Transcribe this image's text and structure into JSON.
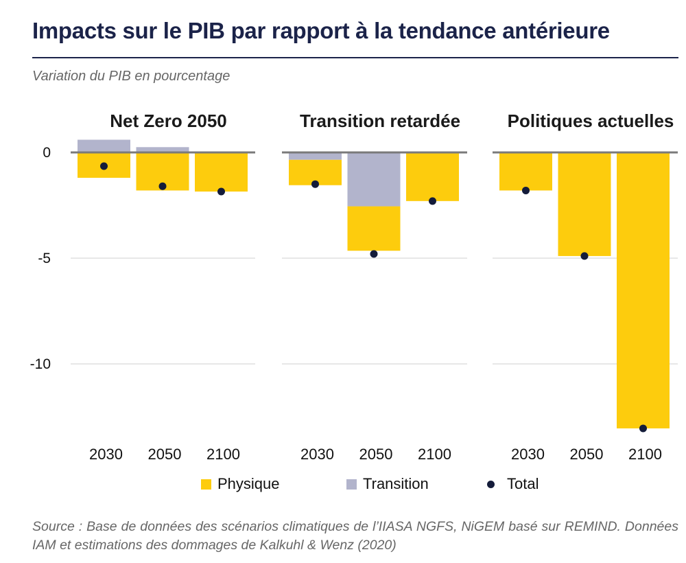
{
  "title": "Impacts sur le PIB par rapport à la tendance antérieure",
  "subtitle": "Variation du PIB en pourcentage",
  "source": "Source : Base de données des scénarios climatiques de l’IIASA NGFS, NiGEM basé sur REMIND. Données IAM et estimations des dommages de Kalkuhl & Wenz (2020)",
  "colors": {
    "physique": "#fdcc0d",
    "transition": "#b2b4cc",
    "total": "#141c3a",
    "title": "#1b2349"
  },
  "chart_data": {
    "type": "bar",
    "stacked": true,
    "ylim": [
      -13,
      0.6
    ],
    "yticks": [
      0,
      -5,
      -10
    ],
    "ytick_labels": [
      "0",
      "-5",
      "-10"
    ],
    "grid": true,
    "legend": {
      "position": "bottom",
      "entries": [
        "Physique",
        "Transition",
        "Total"
      ]
    },
    "panels": [
      {
        "title": "Net Zero 2050",
        "categories": [
          "2030",
          "2050",
          "2100"
        ],
        "series": [
          {
            "name": "Physique",
            "values": [
              -1.2,
              -1.8,
              -1.85
            ]
          },
          {
            "name": "Transition",
            "values": [
              0.6,
              0.25,
              0.0
            ]
          },
          {
            "name": "Total",
            "values": [
              -0.65,
              -1.6,
              -1.85
            ]
          }
        ]
      },
      {
        "title": "Transition retardée",
        "categories": [
          "2030",
          "2050",
          "2100"
        ],
        "series": [
          {
            "name": "Physique",
            "values": [
              -1.2,
              -2.1,
              -2.3
            ]
          },
          {
            "name": "Transition",
            "values": [
              -0.35,
              -2.55,
              0.0
            ]
          },
          {
            "name": "Total",
            "values": [
              -1.5,
              -4.8,
              -2.3
            ]
          }
        ]
      },
      {
        "title": "Politiques actuelles",
        "categories": [
          "2030",
          "2050",
          "2100"
        ],
        "series": [
          {
            "name": "Physique",
            "values": [
              -1.8,
              -4.9,
              -13.05
            ]
          },
          {
            "name": "Transition",
            "values": [
              0.0,
              0.0,
              0.0
            ]
          },
          {
            "name": "Total",
            "values": [
              -1.8,
              -4.9,
              -13.05
            ]
          }
        ]
      }
    ]
  }
}
